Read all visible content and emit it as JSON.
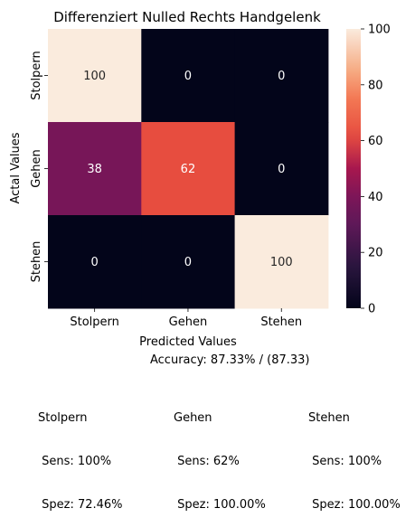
{
  "chart_data": {
    "type": "heatmap",
    "title": "Differenziert Nulled Rechts Handgelenk",
    "xlabel": "Predicted Values",
    "ylabel": "Actal Values",
    "x_categories": [
      "Stolpern",
      "Gehen",
      "Stehen"
    ],
    "y_categories": [
      "Stolpern",
      "Gehen",
      "Stehen"
    ],
    "values": [
      [
        100,
        0,
        0
      ],
      [
        38,
        62,
        0
      ],
      [
        0,
        0,
        100
      ]
    ],
    "colorbar": {
      "min": 0,
      "max": 100,
      "ticks": [
        0,
        20,
        40,
        60,
        80,
        100
      ]
    },
    "colormap": "rocket"
  },
  "summary": {
    "accuracy": "Accuracy: 87.33% / (87.33)",
    "classes": [
      {
        "name": "Stolpern",
        "sens": " Sens: 100%",
        "spez": " Spez: 72.46%"
      },
      {
        "name": "Gehen",
        "sens": " Sens: 62%",
        "spez": " Spez: 100.00%"
      },
      {
        "name": "Stehen",
        "sens": " Sens: 100%",
        "spez": " Spez: 100.00%"
      }
    ]
  }
}
